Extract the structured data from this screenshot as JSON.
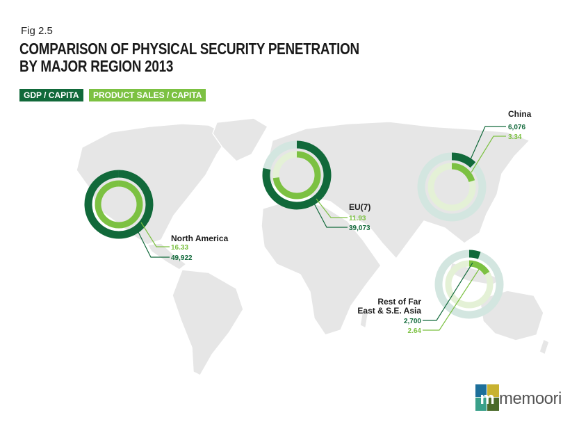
{
  "header": {
    "fig_label": "Fig 2.5",
    "title_line1": "COMPARISON OF PHYSICAL SECURITY PENETRATION",
    "title_line2": "BY MAJOR REGION 2013"
  },
  "legend": {
    "gdp_label": "GDP / CAPITA",
    "sales_label": "PRODUCT SALES / CAPITA"
  },
  "colors": {
    "gdp": "#11693a",
    "sales": "#7cc142",
    "gdp_track": "#d3e6e0",
    "sales_track": "#e4f1d6",
    "map": "#e6e6e6"
  },
  "chart_data": {
    "type": "donut",
    "title": "COMPARISON OF PHYSICAL SECURITY PENETRATION BY MAJOR REGION 2013",
    "series": [
      {
        "name": "GDP / CAPITA",
        "values": [
          49922,
          39073,
          6076,
          2700
        ]
      },
      {
        "name": "PRODUCT SALES / CAPITA",
        "values": [
          16.33,
          11.93,
          3.34,
          2.64
        ]
      }
    ],
    "categories": [
      "North America",
      "EU(7)",
      "China",
      "Rest of Far East & S.E. Asia"
    ],
    "regions": [
      {
        "name": "North America",
        "lines": [
          "North America"
        ],
        "gdp": 49922,
        "gdp_label": "49,922",
        "sales": 16.33,
        "sales_label": "16.33"
      },
      {
        "name": "EU(7)",
        "lines": [
          "EU(7)"
        ],
        "gdp": 39073,
        "gdp_label": "39,073",
        "sales": 11.93,
        "sales_label": "11.93"
      },
      {
        "name": "China",
        "lines": [
          "China"
        ],
        "gdp": 6076,
        "gdp_label": "6,076",
        "sales": 3.34,
        "sales_label": "3.34"
      },
      {
        "name": "Rest of Far East & S.E. Asia",
        "lines": [
          "Rest of Far",
          "East & S.E. Asia"
        ],
        "gdp": 2700,
        "gdp_label": "2,700",
        "sales": 2.64,
        "sales_label": "2.64"
      }
    ]
  },
  "logo": {
    "text": "memoori"
  }
}
